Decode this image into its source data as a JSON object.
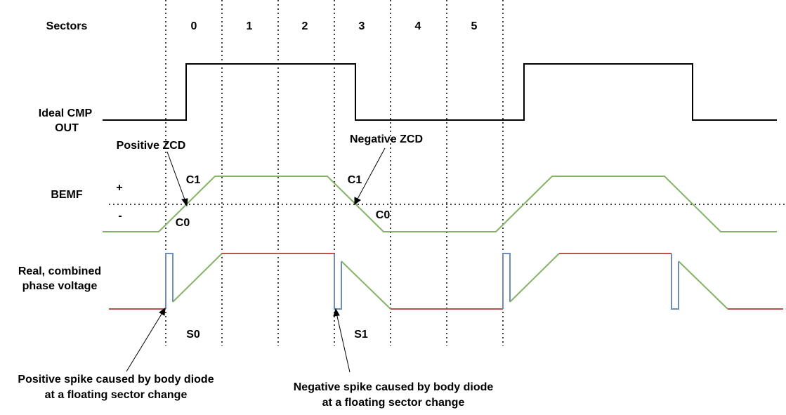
{
  "labels": {
    "sectors_heading": "Sectors",
    "sector_numbers": [
      "0",
      "1",
      "2",
      "3",
      "4",
      "5"
    ],
    "ideal_cmp_out_line1": "Ideal CMP",
    "ideal_cmp_out_line2": "OUT",
    "bemf": "BEMF",
    "plus": "+",
    "minus": "-",
    "real_voltage_line1": "Real, combined",
    "real_voltage_line2": "phase voltage",
    "positive_zcd": "Positive ZCD",
    "negative_zcd": "Negative ZCD",
    "c1_left": "C1",
    "c0_left": "C0",
    "c1_right": "C1",
    "c0_right": "C0",
    "s0": "S0",
    "s1": "S1",
    "positive_spike_line1": "Positive spike caused by body diode",
    "positive_spike_line2": "at a floating sector change",
    "negative_spike_line1": "Negative spike caused by body diode",
    "negative_spike_line2": "at a floating sector change"
  },
  "colors": {
    "cmp_out": "#000000",
    "bemf": "#82b366",
    "phase_flat": "#b85450",
    "phase_ramp": "#82b366",
    "spike": "#6c8ebf",
    "sector_divider": "#000000",
    "zero_line": "#000000"
  }
}
